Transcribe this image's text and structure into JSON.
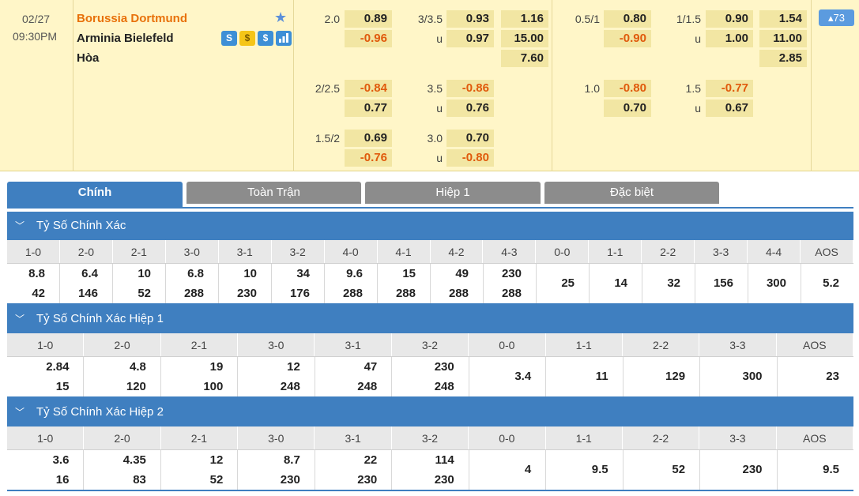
{
  "match": {
    "date": "02/27",
    "time": "09:30PM",
    "home": "Borussia Dortmund",
    "away": "Arminia Bielefeld",
    "draw": "Hòa",
    "more_count": "▴73",
    "icons": [
      "s-icon",
      "coin-icon",
      "dollar-icon",
      "bar-chart-icon"
    ],
    "icon_glyphs": [
      "S",
      "$",
      "$",
      "▮"
    ],
    "fulltime": {
      "handicap": [
        {
          "line": "2.0",
          "home": "0.89",
          "away": "-0.96"
        },
        {
          "line": "2/2.5",
          "home": "-0.84",
          "away": "0.77"
        },
        {
          "line": "1.5/2",
          "home": "0.69",
          "away": "-0.76"
        }
      ],
      "overunder": [
        {
          "line": "3/3.5",
          "over": "0.93",
          "u": "u",
          "under": "0.97"
        },
        {
          "line": "3.5",
          "over": "-0.86",
          "u": "u",
          "under": "0.76"
        },
        {
          "line": "3.0",
          "over": "0.70",
          "u": "u",
          "under": "-0.80"
        }
      ],
      "x12": {
        "home": "1.16",
        "away": "15.00",
        "draw": "7.60"
      }
    },
    "firsthalf": {
      "handicap": [
        {
          "line": "0.5/1",
          "home": "0.80",
          "away": "-0.90"
        },
        {
          "line": "1.0",
          "home": "-0.80",
          "away": "0.70"
        }
      ],
      "overunder": [
        {
          "line": "1/1.5",
          "over": "0.90",
          "u": "u",
          "under": "1.00"
        },
        {
          "line": "1.5",
          "over": "-0.77",
          "u": "u",
          "under": "0.67"
        }
      ],
      "x12": {
        "home": "1.54",
        "away": "11.00",
        "draw": "2.85"
      }
    }
  },
  "tabs": [
    "Chính",
    "Toàn Trận",
    "Hiệp 1",
    "Đặc biệt"
  ],
  "sections": [
    {
      "title": "Tỷ Số Chính Xác",
      "headers": [
        "1-0",
        "2-0",
        "2-1",
        "3-0",
        "3-1",
        "3-2",
        "4-0",
        "4-1",
        "4-2",
        "4-3",
        "0-0",
        "1-1",
        "2-2",
        "3-3",
        "4-4",
        "AOS"
      ],
      "values": [
        [
          "8.8",
          "42"
        ],
        [
          "6.4",
          "146"
        ],
        [
          "10",
          "52"
        ],
        [
          "6.8",
          "288"
        ],
        [
          "10",
          "230"
        ],
        [
          "34",
          "176"
        ],
        [
          "9.6",
          "288"
        ],
        [
          "15",
          "288"
        ],
        [
          "49",
          "288"
        ],
        [
          "230",
          "288"
        ],
        [
          "25"
        ],
        [
          "14"
        ],
        [
          "32"
        ],
        [
          "156"
        ],
        [
          "300"
        ],
        [
          "5.2"
        ]
      ]
    },
    {
      "title": "Tỷ Số Chính Xác Hiệp 1",
      "headers": [
        "1-0",
        "2-0",
        "2-1",
        "3-0",
        "3-1",
        "3-2",
        "0-0",
        "1-1",
        "2-2",
        "3-3",
        "AOS"
      ],
      "values": [
        [
          "2.84",
          "15"
        ],
        [
          "4.8",
          "120"
        ],
        [
          "19",
          "100"
        ],
        [
          "12",
          "248"
        ],
        [
          "47",
          "248"
        ],
        [
          "230",
          "248"
        ],
        [
          "3.4"
        ],
        [
          "11"
        ],
        [
          "129"
        ],
        [
          "300"
        ],
        [
          "23"
        ]
      ]
    },
    {
      "title": "Tỷ Số Chính Xác Hiệp 2",
      "headers": [
        "1-0",
        "2-0",
        "2-1",
        "3-0",
        "3-1",
        "3-2",
        "0-0",
        "1-1",
        "2-2",
        "3-3",
        "AOS"
      ],
      "values": [
        [
          "3.6",
          "16"
        ],
        [
          "4.35",
          "83"
        ],
        [
          "12",
          "52"
        ],
        [
          "8.7",
          "230"
        ],
        [
          "22",
          "230"
        ],
        [
          "114",
          "230"
        ],
        [
          "4"
        ],
        [
          "9.5"
        ],
        [
          "52"
        ],
        [
          "230"
        ],
        [
          "9.5"
        ]
      ]
    }
  ]
}
